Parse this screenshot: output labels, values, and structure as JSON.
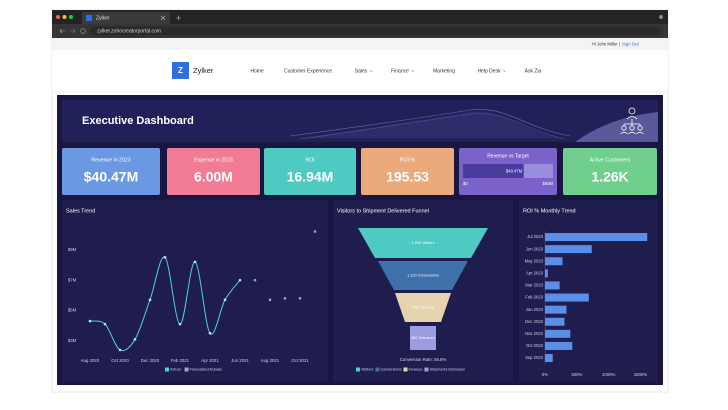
{
  "browser": {
    "tab_title": "Zylker",
    "url": "zylker.zohocreatorportal.com"
  },
  "header": {
    "greeting": "Hi John Miller |",
    "sign_out": "Sign Out"
  },
  "nav": {
    "logo_letter": "Z",
    "brand": "Zylker",
    "items": [
      "Home",
      "Customer Experience",
      "Sales",
      "Finance",
      "Marketing",
      "Help Desk",
      "Ask Zia"
    ]
  },
  "dashboard": {
    "title": "Executive Dashboard",
    "kpis": [
      {
        "label": "Revenue in 2023",
        "value": "$40.47M",
        "color": "#6a98e2"
      },
      {
        "label": "Expense in 2023",
        "value": "6.00M",
        "color": "#f27c96"
      },
      {
        "label": "ROI",
        "value": "16.94M",
        "color": "#4fcac3"
      },
      {
        "label": "ROI %",
        "value": "195.53",
        "color": "#eca97c"
      },
      {
        "label": "Active Customers",
        "value": "1.26K",
        "color": "#70cf8d"
      }
    ],
    "gauge": {
      "label": "Revenue vs Target",
      "value": 40.47,
      "value_label": "$40.47M",
      "min": {
        "value": 0,
        "label": "$0"
      },
      "max": {
        "value": 60,
        "label": "$60M"
      },
      "color": "#7b62cb"
    },
    "funnel": {
      "title": "Visitors to Shipment Delivered Funnel",
      "stages": [
        {
          "name": "Visitors",
          "label": "1,500 Visitors",
          "color": "#4fcac3"
        },
        {
          "name": "Conversions",
          "label": "1,120 Conversions",
          "color": "#3f70a9"
        },
        {
          "name": "Invoices",
          "label": "890 Invoices",
          "color": "#e6d4b0"
        },
        {
          "name": "Shipments Delivered",
          "label": "852 Delivered",
          "color": "#9c9ce2"
        }
      ],
      "footer": "Conversion Rate: 56.8%"
    }
  },
  "chart_data": [
    {
      "type": "line",
      "title": "Sales Trend",
      "categories": [
        "Aug 2020",
        null,
        "Oct 2020",
        null,
        "Dec 2020",
        null,
        "Feb 2021",
        null,
        "Apr 2021",
        null,
        "Jun 2021",
        null,
        "Aug 2021",
        null,
        "Oct 2021",
        null
      ],
      "series": [
        {
          "name": "Actual",
          "color": "#4fd1d9",
          "values": [
            4.3,
            4.1,
            2.4,
            3.1,
            5.7,
            8.5,
            4.1,
            8.2,
            3.5,
            5.7,
            7.0,
            null,
            null,
            null,
            null,
            null
          ]
        },
        {
          "name": "Forecasted Actuals",
          "color": "#9aa6c8",
          "values": [
            null,
            null,
            null,
            null,
            null,
            null,
            null,
            null,
            null,
            null,
            null,
            7.0,
            5.7,
            5.8,
            5.8,
            10.2
          ]
        }
      ],
      "ylim": [
        2,
        10.5
      ],
      "yticks": [
        {
          "value": 3,
          "label": "$3M"
        },
        {
          "value": 5,
          "label": "$5M"
        },
        {
          "value": 7,
          "label": "$7M"
        },
        {
          "value": 9,
          "label": "$9M"
        }
      ]
    },
    {
      "type": "bar",
      "orientation": "horizontal",
      "title": "ROI % Monthly Trend",
      "categories": [
        "Jul 2023",
        "Jun 2023",
        "May 2023",
        "Apr 2023",
        "Mar 2023",
        "Feb 2023",
        "Jan 2023",
        "Dec 2022",
        "Nov 2022",
        "Oct 2022",
        "Sep 2022"
      ],
      "values": [
        1607,
        735,
        276,
        46,
        230,
        689,
        337,
        306,
        398,
        429,
        122
      ],
      "color": "#5b8ee6",
      "xlim": [
        0,
        1650
      ],
      "xticks": [
        {
          "value": 0,
          "label": "0%"
        },
        {
          "value": 500,
          "label": "500%"
        },
        {
          "value": 1000,
          "label": "1000%"
        },
        {
          "value": 1500,
          "label": "1500%"
        }
      ]
    }
  ]
}
